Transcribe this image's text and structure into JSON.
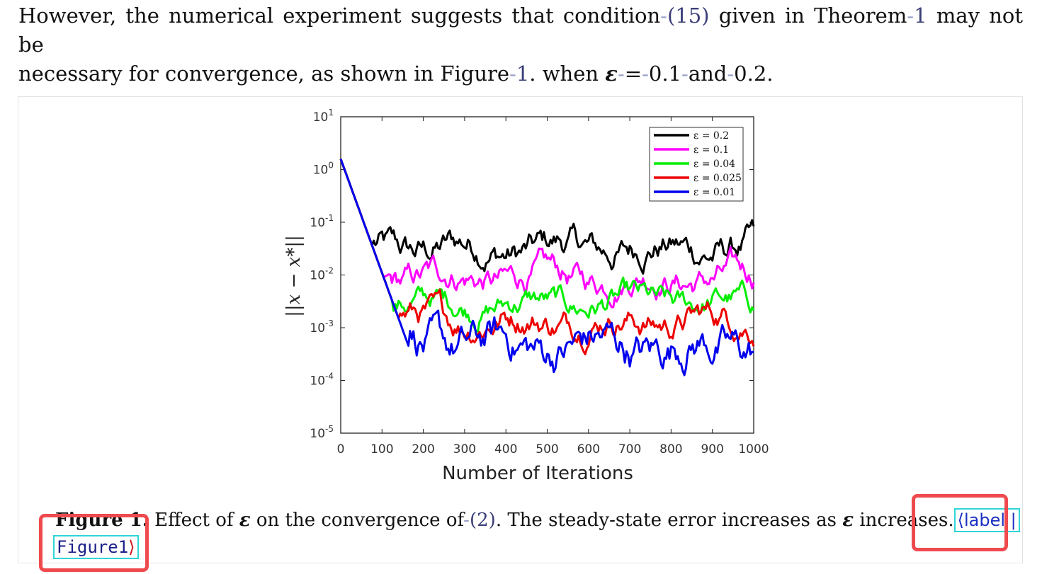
{
  "paragraph": {
    "line1_a": "However, the numerical experiment suggests that condition",
    "line1_ref1": "(15)",
    "line1_b": "given in Theorem",
    "line1_ref2": "1",
    "line1_c": "may not be",
    "line2_a": "necessary for convergence, as shown in Figure",
    "line2_ref": "1",
    "line2_b": ". when",
    "eps_symbol": "ε",
    "eq_sign": "=",
    "val_a": "0.1",
    "and_word": "and",
    "val_b": "0.2",
    "end": "."
  },
  "caption": {
    "label": "Figure 1.",
    "text_a": "Effect of",
    "eps_symbol": "ε",
    "text_b": "on the convergence of",
    "ref": "(2)",
    "text_c": ". The steady-state error increases as",
    "text_d": "increases.",
    "tag_open": "⟨label |",
    "tag_value": "Figure1",
    "tag_close": "⟩"
  },
  "chart_data": {
    "type": "line",
    "xlabel": "Number of Iterations",
    "ylabel": "||x − x*||",
    "xlim": [
      0,
      1000
    ],
    "ylim_log10": [
      -5,
      1
    ],
    "yscale": "log",
    "x_ticks": [
      "0",
      "100",
      "200",
      "300",
      "400",
      "500",
      "600",
      "700",
      "800",
      "900",
      "1000"
    ],
    "y_ticks": [
      "10^1",
      "10^0",
      "10^-1",
      "10^-2",
      "10^-3",
      "10^-4",
      "10^-5"
    ],
    "legend_position": "top-right",
    "series": [
      {
        "name": "ε = 0.2",
        "color": "#000000",
        "steady_log10": -1.5,
        "noise": 0.22
      },
      {
        "name": "ε = 0.1",
        "color": "#ff00ff",
        "steady_log10": -2.05,
        "noise": 0.2
      },
      {
        "name": "ε = 0.04",
        "color": "#00ee00",
        "steady_log10": -2.55,
        "noise": 0.18
      },
      {
        "name": "ε = 0.025",
        "color": "#ee0000",
        "steady_log10": -2.85,
        "noise": 0.2
      },
      {
        "name": "ε = 0.01",
        "color": "#0000ee",
        "steady_log10": -3.35,
        "noise": 0.28
      }
    ],
    "initial_log10": 0.2,
    "decay_rate": 0.018
  }
}
